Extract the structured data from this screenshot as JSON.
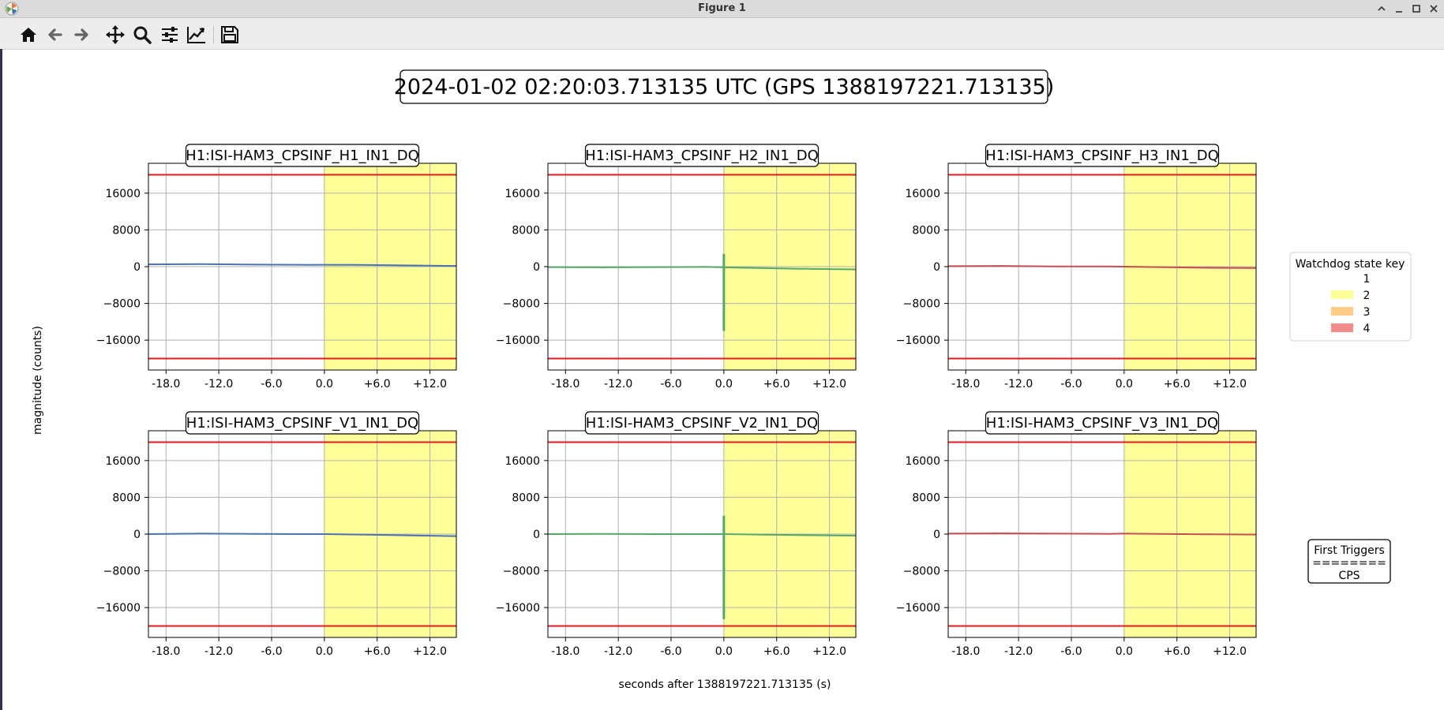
{
  "window": {
    "title": "Figure 1",
    "icon": "matplotlib-icon",
    "controls": [
      "minimize-icon",
      "maximize-icon",
      "close-icon",
      "expand-up-icon"
    ]
  },
  "toolbar": {
    "buttons": [
      "home-icon",
      "back-icon",
      "forward-icon",
      "pan-icon",
      "zoom-icon",
      "configure-subplots-icon",
      "edit-axes-icon",
      "save-icon"
    ]
  },
  "figure": {
    "suptitle": "2024-01-02 02:20:03.713135 UTC (GPS 1388197221.713135)",
    "ylabel": "magnitude (counts)",
    "xlabel": "seconds after 1388197221.713135 (s)"
  },
  "legend": {
    "title": "Watchdog state key",
    "entries": [
      {
        "label": "1",
        "color": "#ffffff"
      },
      {
        "label": "2",
        "color": "#ffff99"
      },
      {
        "label": "3",
        "color": "#ffcc88"
      },
      {
        "label": "4",
        "color": "#f28b8b"
      }
    ]
  },
  "first_triggers": {
    "line1": "First Triggers",
    "line2": "========",
    "line3": "CPS"
  },
  "chart_data": [
    {
      "type": "line",
      "title": "H1:ISI-HAM3_CPSINF_H1_IN1_DQ",
      "color": "#4c72b0",
      "xlim": [
        -20,
        15
      ],
      "ylim": [
        -22500,
        22500
      ],
      "xticks": [
        "-18.0",
        "-12.0",
        "-6.0",
        "0.0",
        "+6.0",
        "+12.0"
      ],
      "yticks": [
        "16000",
        "8000",
        "0",
        "−8000",
        "−16000"
      ],
      "thresholds": [
        20000,
        -20000
      ],
      "shaded_region": {
        "from": 0,
        "to": 15,
        "state": "2"
      },
      "x": [
        -20,
        -14,
        -8,
        -2,
        0,
        4,
        10,
        15
      ],
      "y": [
        500,
        550,
        450,
        400,
        420,
        380,
        250,
        150
      ],
      "glitch": null
    },
    {
      "type": "line",
      "title": "H1:ISI-HAM3_CPSINF_H2_IN1_DQ",
      "color": "#55a868",
      "xlim": [
        -20,
        15
      ],
      "ylim": [
        -22500,
        22500
      ],
      "xticks": [
        "-18.0",
        "-12.0",
        "-6.0",
        "0.0",
        "+6.0",
        "+12.0"
      ],
      "yticks": [
        "16000",
        "8000",
        "0",
        "−8000",
        "−16000"
      ],
      "thresholds": [
        20000,
        -20000
      ],
      "shaded_region": {
        "from": 0,
        "to": 15,
        "state": "2"
      },
      "x": [
        -20,
        -14,
        -8,
        -2,
        0,
        4,
        10,
        15
      ],
      "y": [
        -100,
        -150,
        -100,
        -50,
        -150,
        -300,
        -500,
        -600
      ],
      "glitch": {
        "x": 0,
        "ymin": -14000,
        "ymax": 2800
      }
    },
    {
      "type": "line",
      "title": "H1:ISI-HAM3_CPSINF_H3_IN1_DQ",
      "color": "#c44e52",
      "xlim": [
        -20,
        15
      ],
      "ylim": [
        -22500,
        22500
      ],
      "xticks": [
        "-18.0",
        "-12.0",
        "-6.0",
        "0.0",
        "+6.0",
        "+12.0"
      ],
      "yticks": [
        "16000",
        "8000",
        "0",
        "−8000",
        "−16000"
      ],
      "thresholds": [
        20000,
        -20000
      ],
      "shaded_region": {
        "from": 0,
        "to": 15,
        "state": "2"
      },
      "x": [
        -20,
        -14,
        -8,
        -2,
        0,
        4,
        10,
        15
      ],
      "y": [
        100,
        150,
        50,
        50,
        0,
        -100,
        -250,
        -300
      ],
      "glitch": null
    },
    {
      "type": "line",
      "title": "H1:ISI-HAM3_CPSINF_V1_IN1_DQ",
      "color": "#4c72b0",
      "xlim": [
        -20,
        15
      ],
      "ylim": [
        -22500,
        22500
      ],
      "xticks": [
        "-18.0",
        "-12.0",
        "-6.0",
        "0.0",
        "+6.0",
        "+12.0"
      ],
      "yticks": [
        "16000",
        "8000",
        "0",
        "−8000",
        "−16000"
      ],
      "thresholds": [
        20000,
        -20000
      ],
      "shaded_region": {
        "from": 0,
        "to": 15,
        "state": "2"
      },
      "x": [
        -20,
        -14,
        -8,
        -2,
        0,
        4,
        10,
        15
      ],
      "y": [
        0,
        100,
        50,
        0,
        0,
        -100,
        -300,
        -450
      ],
      "glitch": null
    },
    {
      "type": "line",
      "title": "H1:ISI-HAM3_CPSINF_V2_IN1_DQ",
      "color": "#55a868",
      "xlim": [
        -20,
        15
      ],
      "ylim": [
        -22500,
        22500
      ],
      "xticks": [
        "-18.0",
        "-12.0",
        "-6.0",
        "0.0",
        "+6.0",
        "+12.0"
      ],
      "yticks": [
        "16000",
        "8000",
        "0",
        "−8000",
        "−16000"
      ],
      "thresholds": [
        20000,
        -20000
      ],
      "shaded_region": {
        "from": 0,
        "to": 15,
        "state": "2"
      },
      "x": [
        -20,
        -14,
        -8,
        -2,
        0,
        4,
        10,
        15
      ],
      "y": [
        0,
        50,
        0,
        0,
        0,
        -100,
        -250,
        -350
      ],
      "glitch": {
        "x": 0,
        "ymin": -18500,
        "ymax": 4000
      }
    },
    {
      "type": "line",
      "title": "H1:ISI-HAM3_CPSINF_V3_IN1_DQ",
      "color": "#c44e52",
      "xlim": [
        -20,
        15
      ],
      "ylim": [
        -22500,
        22500
      ],
      "xticks": [
        "-18.0",
        "-12.0",
        "-6.0",
        "0.0",
        "+6.0",
        "+12.0"
      ],
      "yticks": [
        "16000",
        "8000",
        "0",
        "−8000",
        "−16000"
      ],
      "thresholds": [
        20000,
        -20000
      ],
      "shaded_region": {
        "from": 0,
        "to": 15,
        "state": "2"
      },
      "x": [
        -20,
        -14,
        -8,
        -2,
        0,
        4,
        10,
        15
      ],
      "y": [
        100,
        150,
        100,
        50,
        100,
        50,
        -50,
        -100
      ],
      "glitch": null
    }
  ]
}
